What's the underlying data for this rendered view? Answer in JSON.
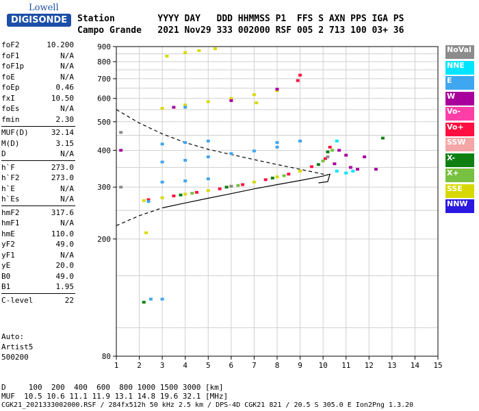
{
  "logo": {
    "line1": "Lowell",
    "line2": "DIGISONDE"
  },
  "header": {
    "row1": "Station        YYYY DAY   DDD HHMMSS P1  FFS S AXN PPS IGA PS",
    "row2": "Campo Grande   2021 Nov29 333 002000 RSF 005 2 713 100 03+ 36"
  },
  "params": [
    {
      "group": [
        {
          "name": "foF2",
          "value": "10.200"
        },
        {
          "name": "foF1",
          "value": "N/A"
        },
        {
          "name": "foF1p",
          "value": "N/A"
        },
        {
          "name": "foE",
          "value": "N/A"
        },
        {
          "name": "foEp",
          "value": "0.46"
        },
        {
          "name": "fxI",
          "value": "10.50"
        },
        {
          "name": "foEs",
          "value": "N/A"
        },
        {
          "name": "fmin",
          "value": "2.30"
        }
      ]
    },
    {
      "group": [
        {
          "name": "MUF(D)",
          "value": "32.14"
        },
        {
          "name": "M(D)",
          "value": "3.15"
        },
        {
          "name": "D",
          "value": "N/A"
        }
      ]
    },
    {
      "group": [
        {
          "name": "h`F",
          "value": "273.0"
        },
        {
          "name": "h`F2",
          "value": "273.0"
        },
        {
          "name": "h`E",
          "value": "N/A"
        },
        {
          "name": "h`Es",
          "value": "N/A"
        }
      ]
    },
    {
      "group": [
        {
          "name": "hmF2",
          "value": "317.6"
        },
        {
          "name": "hmF1",
          "value": "N/A"
        },
        {
          "name": "hmE",
          "value": "110.0"
        },
        {
          "name": "yF2",
          "value": "49.0"
        },
        {
          "name": "yF1",
          "value": "N/A"
        },
        {
          "name": "yE",
          "value": "20.0"
        },
        {
          "name": "B0",
          "value": "49.0"
        },
        {
          "name": "B1",
          "value": "1.95"
        }
      ]
    },
    {
      "group": [
        {
          "name": "C-level",
          "value": "22"
        }
      ]
    }
  ],
  "extra": {
    "line1": "Auto:",
    "line2": "Artist5",
    "line3": "500200"
  },
  "legend": [
    {
      "label": "NoVal",
      "color": "#8c8c8c"
    },
    {
      "label": "NNE",
      "color": "#00e5ff"
    },
    {
      "label": "E",
      "color": "#3fa6f0"
    },
    {
      "label": "W",
      "color": "#a8009c"
    },
    {
      "label": "Vo-",
      "color": "#ff3fa8"
    },
    {
      "label": "Vo+",
      "color": "#ff1040"
    },
    {
      "label": "SSW",
      "color": "#f4a6a6"
    },
    {
      "label": "X-",
      "color": "#0f7f14"
    },
    {
      "label": "X+",
      "color": "#78c040"
    },
    {
      "label": "SSE",
      "color": "#d8d800"
    },
    {
      "label": "NNW",
      "color": "#2a18e0"
    }
  ],
  "footer": {
    "d_row": "D     100  200  400  600  800 1000 1500 3000 [km]",
    "muf_row": "MUF  10.5 10.6 11.1 11.9 13.1 14.8 19.6 32.1 [MHz]",
    "info_row": "CGK21_2021333002000.RSF / 284fx512h 50 kHz 2.5 km / DPS-4D CGK21 821 / 20.5 S 305.0 E Ion2Png 1.3.20"
  },
  "chart_data": {
    "type": "scatter",
    "xlim": [
      1,
      15
    ],
    "ylim": [
      80,
      900
    ],
    "x_ticks": [
      1,
      2,
      3,
      4,
      5,
      6,
      7,
      8,
      9,
      10,
      11,
      12,
      13,
      14,
      15
    ],
    "y_ticks": [
      80,
      200,
      300,
      400,
      500,
      600,
      700,
      800,
      900
    ],
    "grid": true,
    "series": [
      {
        "name": "SSE",
        "color": "#d8d800",
        "points": [
          [
            2.2,
            270
          ],
          [
            3.0,
            276
          ],
          [
            4.0,
            284
          ],
          [
            5.0,
            292
          ],
          [
            6.0,
            302
          ],
          [
            7.0,
            312
          ],
          [
            8.0,
            325
          ],
          [
            9.0,
            340
          ],
          [
            3.0,
            555
          ],
          [
            4.0,
            570
          ],
          [
            5.0,
            585
          ],
          [
            6.0,
            600
          ],
          [
            7.0,
            618
          ],
          [
            8.0,
            638
          ],
          [
            3.2,
            835
          ],
          [
            4.0,
            858
          ],
          [
            4.6,
            872
          ],
          [
            5.3,
            885
          ],
          [
            2.3,
            210
          ],
          [
            7.1,
            580
          ]
        ]
      },
      {
        "name": "Vo+",
        "color": "#ff1040",
        "points": [
          [
            2.4,
            272
          ],
          [
            3.5,
            280
          ],
          [
            4.5,
            288
          ],
          [
            5.5,
            296
          ],
          [
            6.5,
            306
          ],
          [
            7.5,
            318
          ],
          [
            8.5,
            332
          ],
          [
            9.5,
            352
          ],
          [
            10.1,
            375
          ],
          [
            10.3,
            410
          ],
          [
            8.9,
            690
          ],
          [
            9.0,
            720
          ]
        ]
      },
      {
        "name": "X-",
        "color": "#0f7f14",
        "points": [
          [
            3.8,
            282
          ],
          [
            5.8,
            300
          ],
          [
            7.8,
            322
          ],
          [
            9.8,
            358
          ],
          [
            10.2,
            395
          ],
          [
            12.6,
            440
          ],
          [
            2.2,
            122
          ]
        ]
      },
      {
        "name": "X+",
        "color": "#78c040",
        "points": [
          [
            4.3,
            286
          ],
          [
            6.3,
            304
          ],
          [
            8.3,
            328
          ],
          [
            10.0,
            368
          ],
          [
            10.4,
            400
          ]
        ]
      },
      {
        "name": "W",
        "color": "#a8009c",
        "points": [
          [
            10.5,
            360
          ],
          [
            10.7,
            400
          ],
          [
            11.0,
            385
          ],
          [
            11.2,
            350
          ],
          [
            11.5,
            345
          ],
          [
            11.8,
            380
          ],
          [
            12.3,
            345
          ],
          [
            1.2,
            400
          ],
          [
            3.5,
            560
          ],
          [
            6.0,
            590
          ],
          [
            8.0,
            645
          ]
        ]
      },
      {
        "name": "NNE",
        "color": "#00e5ff",
        "points": [
          [
            10.6,
            340
          ],
          [
            11.0,
            335
          ],
          [
            11.3,
            340
          ],
          [
            10.6,
            430
          ]
        ]
      },
      {
        "name": "E",
        "color": "#3fa6f0",
        "points": [
          [
            3.0,
            365
          ],
          [
            4.0,
            370
          ],
          [
            5.0,
            380
          ],
          [
            6.0,
            390
          ],
          [
            7.0,
            398
          ],
          [
            8.0,
            410
          ],
          [
            3.0,
            420
          ],
          [
            4.0,
            425
          ],
          [
            5.0,
            430
          ],
          [
            8.0,
            425
          ],
          [
            9.0,
            430
          ],
          [
            3.0,
            312
          ],
          [
            4.0,
            315
          ],
          [
            5.0,
            320
          ],
          [
            2.5,
            125
          ],
          [
            3.0,
            125
          ],
          [
            4.0,
            560
          ],
          [
            2.4,
            268
          ]
        ]
      },
      {
        "name": "NoVal",
        "color": "#8c8c8c",
        "points": [
          [
            1.2,
            300
          ],
          [
            1.2,
            460
          ],
          [
            10.2,
            380
          ],
          [
            6.0,
            302
          ]
        ]
      }
    ],
    "dashed_curve": [
      [
        1,
        550
      ],
      [
        2,
        495
      ],
      [
        3,
        455
      ],
      [
        4,
        425
      ],
      [
        5,
        403
      ],
      [
        6,
        387
      ],
      [
        7,
        372
      ],
      [
        8,
        358
      ],
      [
        9,
        345
      ],
      [
        10,
        332
      ],
      [
        10.2,
        330
      ]
    ],
    "dashed_lower": [
      [
        1,
        222
      ],
      [
        2,
        240
      ],
      [
        3,
        255
      ]
    ],
    "solid_curve": [
      [
        3,
        255
      ],
      [
        4,
        265
      ],
      [
        5,
        275
      ],
      [
        6,
        285
      ],
      [
        7,
        296
      ],
      [
        8,
        306
      ],
      [
        9,
        316
      ],
      [
        10,
        327
      ],
      [
        10.3,
        332
      ],
      [
        10.2,
        313
      ],
      [
        9.8,
        310
      ]
    ]
  }
}
